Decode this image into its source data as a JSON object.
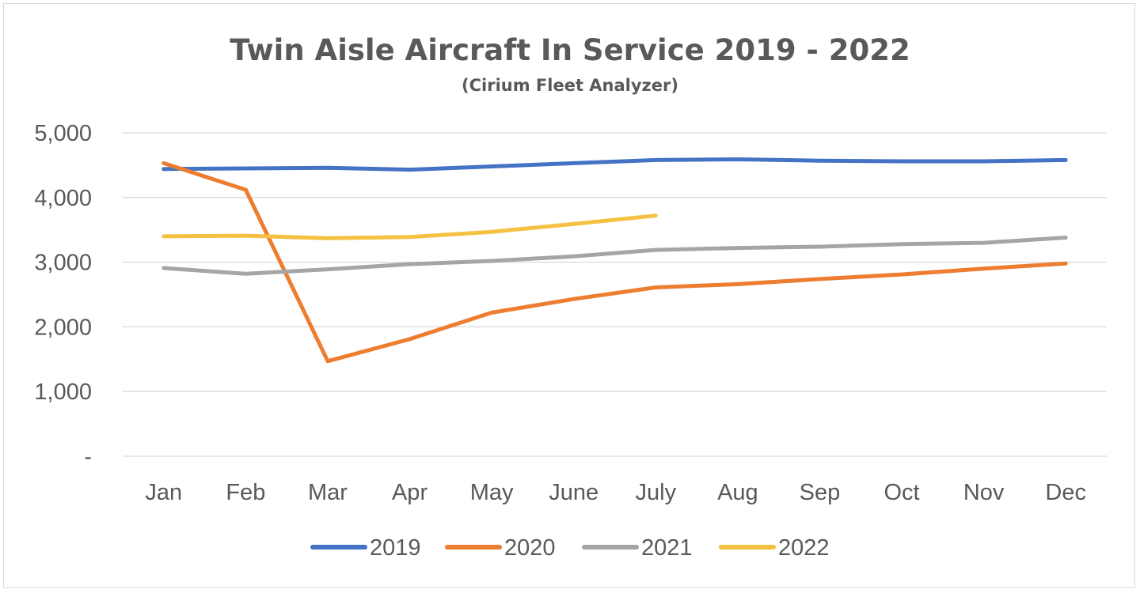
{
  "chart_data": {
    "type": "line",
    "title": "Twin Aisle Aircraft In Service 2019 - 2022",
    "subtitle": "(Cirium Fleet Analyzer)",
    "xlabel": "",
    "ylabel": "",
    "categories": [
      "Jan",
      "Feb",
      "Mar",
      "Apr",
      "May",
      "June",
      "July",
      "Aug",
      "Sep",
      "Oct",
      "Nov",
      "Dec"
    ],
    "ylim": [
      0,
      5000
    ],
    "yticks": [
      0,
      1000,
      2000,
      3000,
      4000,
      5000
    ],
    "ytick_labels": [
      "-",
      "1,000",
      "2,000",
      "3,000",
      "4,000",
      "5,000"
    ],
    "grid": true,
    "legend_position": "bottom",
    "series": [
      {
        "name": "2019",
        "color": "#4472C4",
        "values": [
          4440,
          4450,
          4460,
          4430,
          4480,
          4530,
          4580,
          4590,
          4570,
          4560,
          4560,
          4580
        ]
      },
      {
        "name": "2020",
        "color": "#ED7D31",
        "values": [
          4530,
          4120,
          1470,
          1810,
          2220,
          2430,
          2610,
          2660,
          2740,
          2810,
          2900,
          2980
        ]
      },
      {
        "name": "2021",
        "color": "#A5A5A5",
        "values": [
          2910,
          2820,
          2890,
          2970,
          3020,
          3090,
          3190,
          3220,
          3240,
          3280,
          3300,
          3380
        ]
      },
      {
        "name": "2022",
        "color": "#F4C142",
        "values": [
          3400,
          3410,
          3370,
          3390,
          3470,
          3590,
          3720,
          null,
          null,
          null,
          null,
          null
        ]
      }
    ]
  }
}
